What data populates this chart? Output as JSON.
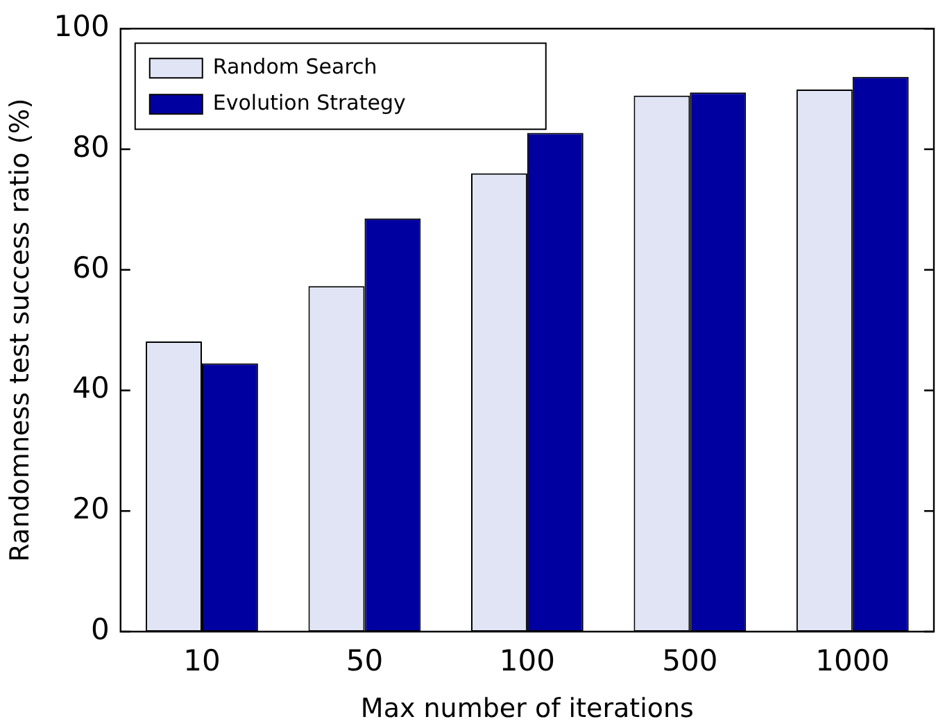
{
  "chart_data": {
    "type": "bar",
    "xlabel": "Max number of iterations",
    "ylabel": "Randomness test success ratio (%)",
    "categories": [
      "10",
      "50",
      "100",
      "500",
      "1000"
    ],
    "series": [
      {
        "name": "Random Search",
        "color": "#e0e4f4",
        "values": [
          48.1,
          57.3,
          76.0,
          88.9,
          89.9
        ]
      },
      {
        "name": "Evolution Strategy",
        "color": "#0000a0",
        "values": [
          44.5,
          68.5,
          82.7,
          89.4,
          92.0
        ]
      }
    ],
    "ylim": [
      0,
      100
    ],
    "yticks": [
      0,
      20,
      40,
      60,
      80,
      100
    ],
    "grid": false,
    "legend": "top left"
  }
}
